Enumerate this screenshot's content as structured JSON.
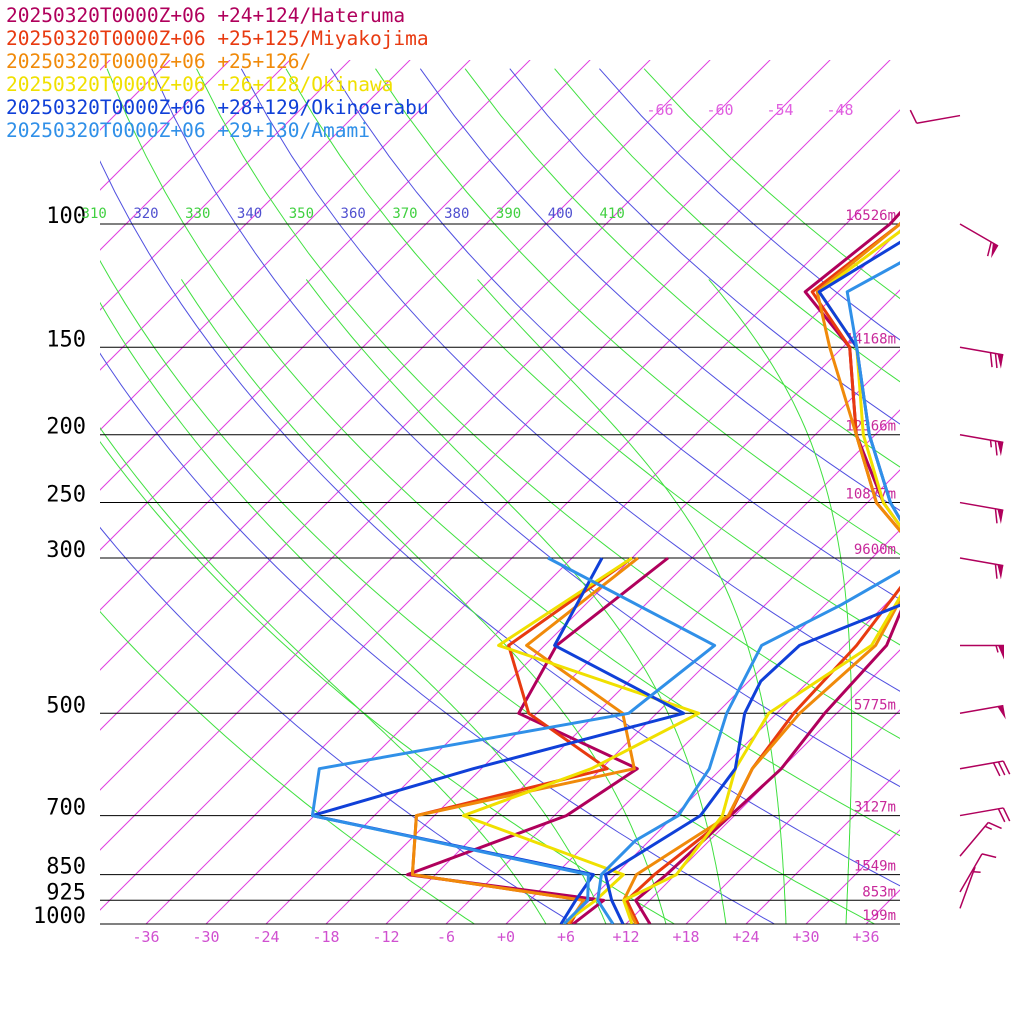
{
  "legend": [
    {
      "label": "20250320T0000Z+06 +24+124/Hateruma",
      "color": "#b0005c"
    },
    {
      "label": "20250320T0000Z+06 +25+125/Miyakojima",
      "color": "#e83a10"
    },
    {
      "label": "20250320T0000Z+06 +25+126/",
      "color": "#f08a0a"
    },
    {
      "label": "20250320T0000Z+06 +26+128/Okinawa",
      "color": "#f0e000"
    },
    {
      "label": "20250320T0000Z+06 +28+129/Okinoerabu",
      "color": "#1040d8"
    },
    {
      "label": "20250320T0000Z+06 +29+130/Amami",
      "color": "#3090e8"
    }
  ],
  "chart_data": {
    "type": "line",
    "x_ticks": [
      -36,
      -30,
      -24,
      -18,
      -12,
      -6,
      0,
      6,
      12,
      18,
      24,
      30,
      36
    ],
    "x_tick_labels": [
      "-36",
      "-30",
      "-24",
      "-18",
      "-12",
      "-6",
      "+0",
      "+6",
      "+12",
      "+18",
      "+24",
      "+30",
      "+36"
    ],
    "pressure_levels": [
      {
        "p": 100,
        "label": "100",
        "height": "16526m"
      },
      {
        "p": 150,
        "label": "150",
        "height": "14168m"
      },
      {
        "p": 200,
        "label": "200",
        "height": "12366m"
      },
      {
        "p": 250,
        "label": "250",
        "height": "10877m"
      },
      {
        "p": 300,
        "label": "300",
        "height": "9600m"
      },
      {
        "p": 500,
        "label": "500",
        "height": "5775m"
      },
      {
        "p": 700,
        "label": "700",
        "height": "3127m"
      },
      {
        "p": 850,
        "label": "850",
        "height": "1549m"
      },
      {
        "p": 925,
        "label": "925",
        "height": "853m"
      },
      {
        "p": 1000,
        "label": "1000",
        "height": "199m"
      }
    ],
    "upper_isotherm_labels": [
      "-66",
      "-60",
      "-54",
      "-48"
    ],
    "theta_labels": [
      {
        "text": "310",
        "color": "#40d040"
      },
      {
        "text": "320",
        "color": "#5050d0"
      },
      {
        "text": "330",
        "color": "#40d040"
      },
      {
        "text": "340",
        "color": "#5050d0"
      },
      {
        "text": "350",
        "color": "#40d040"
      },
      {
        "text": "360",
        "color": "#5050d0"
      },
      {
        "text": "370",
        "color": "#40d040"
      },
      {
        "text": "380",
        "color": "#5050d0"
      },
      {
        "text": "390",
        "color": "#40d040"
      },
      {
        "text": "400",
        "color": "#5050d0"
      },
      {
        "text": "410",
        "color": "#40d040"
      }
    ],
    "series": [
      {
        "name": "20250320T0000Z+06 +24+124/Hateruma",
        "color": "#b0005c",
        "temperature": [
          [
            1000,
            14.4
          ],
          [
            925,
            10.6
          ],
          [
            850,
            11.1
          ],
          [
            700,
            11.6
          ],
          [
            600,
            12.0
          ],
          [
            500,
            10.8
          ],
          [
            400,
            10.2
          ],
          [
            300,
            5.1
          ],
          [
            250,
            -4.4
          ],
          [
            200,
            -13.9
          ],
          [
            150,
            -23.3
          ],
          [
            125,
            -33.3
          ],
          [
            100,
            -31.6
          ],
          [
            80,
            -32.2
          ],
          [
            70,
            -29.6
          ],
          [
            60,
            -27.4
          ]
        ],
        "dewpoint": [
          [
            1000,
            6.7
          ],
          [
            925,
            7.4
          ],
          [
            850,
            -14.8
          ],
          [
            700,
            -4.8
          ],
          [
            600,
            -2.4
          ],
          [
            500,
            -19.8
          ],
          [
            400,
            -22.8
          ],
          [
            300,
            -20.4
          ]
        ]
      },
      {
        "name": "20250320T0000Z+06 +25+125/Miyakojima",
        "color": "#e83a10",
        "temperature": [
          [
            1000,
            13.2
          ],
          [
            925,
            9.7
          ],
          [
            850,
            9.9
          ],
          [
            700,
            11.5
          ],
          [
            600,
            9.1
          ],
          [
            500,
            7.7
          ],
          [
            400,
            7.2
          ],
          [
            300,
            5.1
          ],
          [
            250,
            -5.1
          ],
          [
            200,
            -13.9
          ],
          [
            150,
            -23.3
          ],
          [
            125,
            -32.6
          ],
          [
            100,
            -30.6
          ],
          [
            80,
            -30.2
          ],
          [
            70,
            -27.6
          ],
          [
            60,
            -25.5
          ]
        ],
        "dewpoint": [
          [
            1000,
            6.4
          ],
          [
            925,
            5.4
          ],
          [
            850,
            -14.3
          ],
          [
            700,
            -19.8
          ],
          [
            600,
            -5.4
          ],
          [
            500,
            -18.8
          ],
          [
            400,
            -27.6
          ],
          [
            300,
            -24.0
          ]
        ]
      },
      {
        "name": "20250320T0000Z+06 +25+126/",
        "color": "#f08a0a",
        "temperature": [
          [
            1000,
            13.0
          ],
          [
            925,
            9.4
          ],
          [
            850,
            8.1
          ],
          [
            700,
            11.4
          ],
          [
            600,
            9.1
          ],
          [
            500,
            8.3
          ],
          [
            400,
            9.1
          ],
          [
            300,
            5.1
          ],
          [
            250,
            -5.1
          ],
          [
            200,
            -13.9
          ],
          [
            150,
            -25.3
          ],
          [
            125,
            -32.1
          ],
          [
            100,
            -30.6
          ],
          [
            80,
            -30.2
          ],
          [
            70,
            -27.6
          ],
          [
            60,
            -25.5
          ]
        ],
        "dewpoint": [
          [
            1000,
            6.2
          ],
          [
            925,
            5.4
          ],
          [
            850,
            -14.3
          ],
          [
            700,
            -19.8
          ],
          [
            600,
            -2.7
          ],
          [
            500,
            -9.4
          ],
          [
            400,
            -25.8
          ],
          [
            300,
            -23.4
          ]
        ]
      },
      {
        "name": "20250320T0000Z+06 +26+128/Okinawa",
        "color": "#f0e000",
        "temperature": [
          [
            1000,
            12.6
          ],
          [
            925,
            9.4
          ],
          [
            850,
            12.1
          ],
          [
            700,
            10.8
          ],
          [
            600,
            7.4
          ],
          [
            500,
            5.2
          ],
          [
            400,
            8.7
          ],
          [
            300,
            5.1
          ],
          [
            250,
            -4.4
          ],
          [
            200,
            -13.2
          ],
          [
            150,
            -22.6
          ],
          [
            125,
            -31.9
          ],
          [
            100,
            -29.6
          ],
          [
            80,
            -28.2
          ],
          [
            70,
            -25.6
          ],
          [
            60,
            -23.5
          ]
        ],
        "dewpoint": [
          [
            1000,
            5.7
          ],
          [
            925,
            6.6
          ],
          [
            850,
            6.8
          ],
          [
            700,
            -15.1
          ],
          [
            600,
            -7.0
          ],
          [
            500,
            -1.8
          ],
          [
            400,
            -28.6
          ],
          [
            300,
            -24.0
          ]
        ]
      },
      {
        "name": "20250320T0000Z+06 +28+129/Okinoerabu",
        "color": "#1040d8",
        "temperature": [
          [
            1000,
            11.7
          ],
          [
            925,
            8.2
          ],
          [
            850,
            5.0
          ],
          [
            700,
            8.6
          ],
          [
            600,
            7.4
          ],
          [
            500,
            2.8
          ],
          [
            450,
            1.2
          ],
          [
            400,
            1.5
          ],
          [
            350,
            7.6
          ],
          [
            300,
            5.1
          ],
          [
            250,
            -3.7
          ],
          [
            200,
            -12.6
          ],
          [
            150,
            -22.6
          ],
          [
            125,
            -31.9
          ],
          [
            100,
            -27.6
          ],
          [
            80,
            -22.2
          ],
          [
            70,
            -19.7
          ],
          [
            60,
            -20.2
          ]
        ],
        "dewpoint": [
          [
            1000,
            5.5
          ],
          [
            925,
            4.6
          ],
          [
            850,
            3.8
          ],
          [
            700,
            -30.2
          ],
          [
            600,
            -18.8
          ],
          [
            500,
            -3.3
          ],
          [
            400,
            -23.0
          ],
          [
            300,
            -27.0
          ]
        ]
      },
      {
        "name": "20250320T0000Z+06 +29+130/Amami",
        "color": "#3090e8",
        "temperature": [
          [
            1000,
            10.7
          ],
          [
            925,
            6.8
          ],
          [
            850,
            4.6
          ],
          [
            760,
            4.6
          ],
          [
            700,
            6.4
          ],
          [
            600,
            4.8
          ],
          [
            500,
            1.0
          ],
          [
            400,
            -2.3
          ],
          [
            350,
            1.6
          ],
          [
            300,
            5.1
          ],
          [
            250,
            -3.7
          ],
          [
            200,
            -12.6
          ],
          [
            150,
            -22.6
          ],
          [
            125,
            -29.1
          ],
          [
            100,
            -23.5
          ],
          [
            80,
            -20.2
          ],
          [
            70,
            -18.2
          ],
          [
            60,
            -18.9
          ]
        ],
        "dewpoint": [
          [
            1000,
            5.8
          ],
          [
            925,
            5.8
          ],
          [
            850,
            3.3
          ],
          [
            700,
            -30.2
          ],
          [
            600,
            -34.2
          ],
          [
            500,
            -8.8
          ],
          [
            400,
            -7.0
          ],
          [
            300,
            -32.4
          ]
        ]
      }
    ],
    "wind_barbs": [
      {
        "p": 70,
        "speed_kt": 10,
        "dir_deg": 80
      },
      {
        "p": 100,
        "speed_kt": 60,
        "dir_deg": 300
      },
      {
        "p": 150,
        "speed_kt": 70,
        "dir_deg": 280
      },
      {
        "p": 200,
        "speed_kt": 65,
        "dir_deg": 280
      },
      {
        "p": 250,
        "speed_kt": 60,
        "dir_deg": 280
      },
      {
        "p": 300,
        "speed_kt": 60,
        "dir_deg": 280
      },
      {
        "p": 400,
        "speed_kt": 55,
        "dir_deg": 270
      },
      {
        "p": 500,
        "speed_kt": 50,
        "dir_deg": 260
      },
      {
        "p": 600,
        "speed_kt": 30,
        "dir_deg": 260
      },
      {
        "p": 700,
        "speed_kt": 20,
        "dir_deg": 260
      },
      {
        "p": 800,
        "speed_kt": 15,
        "dir_deg": 220
      },
      {
        "p": 900,
        "speed_kt": 10,
        "dir_deg": 210
      },
      {
        "p": 950,
        "speed_kt": 5,
        "dir_deg": 200
      }
    ],
    "grid": true
  }
}
